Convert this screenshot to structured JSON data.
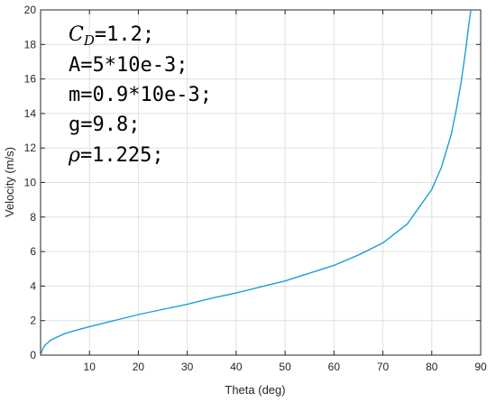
{
  "chart_data": {
    "type": "line",
    "xlabel": "Theta (deg)",
    "ylabel": "Velocity (m/s)",
    "xlim": [
      0,
      90
    ],
    "ylim": [
      0,
      20
    ],
    "xticks": [
      10,
      20,
      30,
      40,
      50,
      60,
      70,
      80,
      90
    ],
    "yticks": [
      0,
      2,
      4,
      6,
      8,
      10,
      12,
      14,
      16,
      18,
      20
    ],
    "grid": true,
    "box": true,
    "series": [
      {
        "color": "#1f9fd4",
        "x": [
          0.1,
          0.5,
          1,
          2,
          3,
          5,
          7,
          10,
          15,
          20,
          25,
          30,
          35,
          40,
          45,
          50,
          55,
          60,
          65,
          70,
          75,
          80,
          82,
          84,
          85,
          86,
          87,
          87.5,
          88
        ],
        "y": [
          0.08,
          0.4,
          0.6,
          0.85,
          1.0,
          1.25,
          1.42,
          1.65,
          2.0,
          2.35,
          2.65,
          2.95,
          3.3,
          3.6,
          3.95,
          4.3,
          4.75,
          5.2,
          5.8,
          6.5,
          7.6,
          9.6,
          10.9,
          12.8,
          14.2,
          15.8,
          17.8,
          19.0,
          20.0
        ]
      }
    ],
    "annotations": {
      "cd_symbol": "C",
      "cd_subscript": "D",
      "cd_rest": "=1.2;",
      "line_A": "A=5*10e-3;",
      "line_m": "m=0.9*10e-3;",
      "line_g": "g=9.8;",
      "rho_symbol": "ρ",
      "rho_rest": "=1.225;"
    },
    "colors": {
      "axis": "#262626",
      "grid": "#e0e0e0",
      "line": "#1f9fd4"
    }
  }
}
